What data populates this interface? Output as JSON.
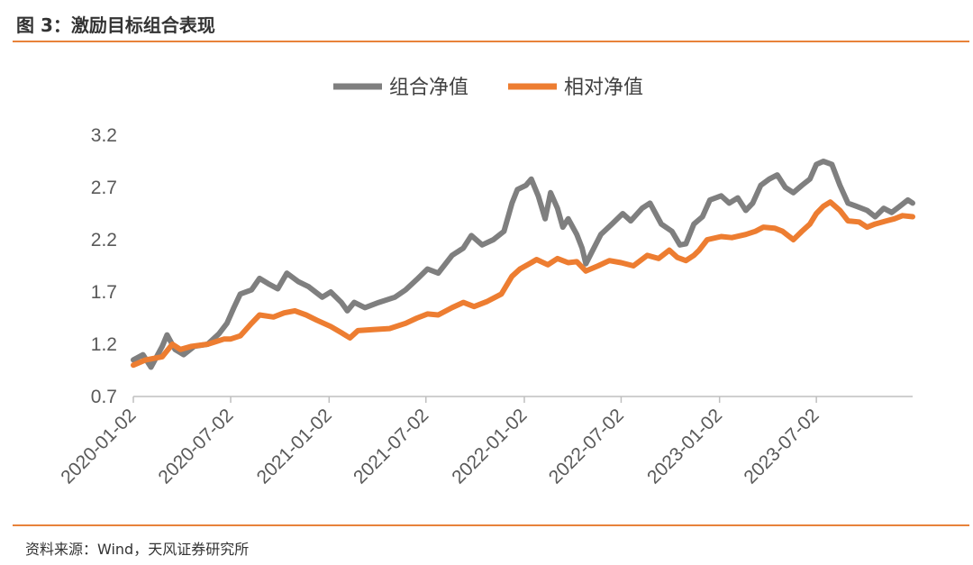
{
  "header": {
    "title": "图 3：激励目标组合表现"
  },
  "footer": {
    "source": "资料来源：Wind，天风证券研究所"
  },
  "colors": {
    "accent": "#e8823a",
    "combo": "#7f7f7f",
    "relative": "#ed7d31"
  },
  "chart_data": {
    "type": "line",
    "title": "",
    "xlabel": "",
    "ylabel": "",
    "ylim": [
      0.7,
      3.2
    ],
    "yticks": [
      0.7,
      1.2,
      1.7,
      2.2,
      2.7,
      3.2
    ],
    "xticks": [
      "2020-01-02",
      "2020-07-02",
      "2021-01-02",
      "2021-07-02",
      "2022-01-02",
      "2022-07-02",
      "2023-01-02",
      "2023-07-02"
    ],
    "legend_position": "top-center",
    "series": [
      {
        "name": "组合净值",
        "color": "#7f7f7f",
        "points": [
          [
            "2020-01-02",
            1.05
          ],
          [
            "2020-01-20",
            1.1
          ],
          [
            "2020-02-04",
            0.98
          ],
          [
            "2020-02-25",
            1.18
          ],
          [
            "2020-03-05",
            1.29
          ],
          [
            "2020-03-20",
            1.15
          ],
          [
            "2020-04-05",
            1.1
          ],
          [
            "2020-04-25",
            1.18
          ],
          [
            "2020-05-20",
            1.2
          ],
          [
            "2020-06-10",
            1.3
          ],
          [
            "2020-06-25",
            1.4
          ],
          [
            "2020-07-08",
            1.55
          ],
          [
            "2020-07-20",
            1.68
          ],
          [
            "2020-08-10",
            1.72
          ],
          [
            "2020-08-25",
            1.83
          ],
          [
            "2020-09-10",
            1.78
          ],
          [
            "2020-09-28",
            1.73
          ],
          [
            "2020-10-15",
            1.88
          ],
          [
            "2020-11-05",
            1.8
          ],
          [
            "2020-11-25",
            1.75
          ],
          [
            "2020-12-20",
            1.65
          ],
          [
            "2021-01-05",
            1.7
          ],
          [
            "2021-01-25",
            1.6
          ],
          [
            "2021-02-05",
            1.52
          ],
          [
            "2021-02-18",
            1.6
          ],
          [
            "2021-03-10",
            1.55
          ],
          [
            "2021-04-05",
            1.6
          ],
          [
            "2021-05-05",
            1.65
          ],
          [
            "2021-05-25",
            1.72
          ],
          [
            "2021-06-15",
            1.82
          ],
          [
            "2021-07-05",
            1.92
          ],
          [
            "2021-07-25",
            1.88
          ],
          [
            "2021-08-20",
            2.05
          ],
          [
            "2021-09-10",
            2.12
          ],
          [
            "2021-09-25",
            2.24
          ],
          [
            "2021-10-15",
            2.15
          ],
          [
            "2021-11-05",
            2.2
          ],
          [
            "2021-11-25",
            2.28
          ],
          [
            "2021-12-10",
            2.55
          ],
          [
            "2021-12-20",
            2.68
          ],
          [
            "2022-01-05",
            2.72
          ],
          [
            "2022-01-15",
            2.78
          ],
          [
            "2022-01-28",
            2.62
          ],
          [
            "2022-02-10",
            2.4
          ],
          [
            "2022-02-20",
            2.65
          ],
          [
            "2022-03-05",
            2.5
          ],
          [
            "2022-03-15",
            2.32
          ],
          [
            "2022-03-25",
            2.4
          ],
          [
            "2022-04-10",
            2.25
          ],
          [
            "2022-04-20",
            2.12
          ],
          [
            "2022-04-27",
            1.97
          ],
          [
            "2022-05-10",
            2.1
          ],
          [
            "2022-05-25",
            2.25
          ],
          [
            "2022-06-15",
            2.35
          ],
          [
            "2022-07-05",
            2.45
          ],
          [
            "2022-07-20",
            2.38
          ],
          [
            "2022-08-10",
            2.5
          ],
          [
            "2022-08-25",
            2.55
          ],
          [
            "2022-09-15",
            2.35
          ],
          [
            "2022-10-05",
            2.28
          ],
          [
            "2022-10-20",
            2.15
          ],
          [
            "2022-10-31",
            2.16
          ],
          [
            "2022-11-15",
            2.35
          ],
          [
            "2022-12-01",
            2.42
          ],
          [
            "2022-12-15",
            2.58
          ],
          [
            "2023-01-05",
            2.62
          ],
          [
            "2023-01-20",
            2.55
          ],
          [
            "2023-02-05",
            2.6
          ],
          [
            "2023-02-20",
            2.48
          ],
          [
            "2023-03-05",
            2.55
          ],
          [
            "2023-03-20",
            2.72
          ],
          [
            "2023-04-05",
            2.78
          ],
          [
            "2023-04-20",
            2.82
          ],
          [
            "2023-05-05",
            2.7
          ],
          [
            "2023-05-20",
            2.65
          ],
          [
            "2023-06-05",
            2.72
          ],
          [
            "2023-06-20",
            2.78
          ],
          [
            "2023-07-02",
            2.92
          ],
          [
            "2023-07-15",
            2.95
          ],
          [
            "2023-07-31",
            2.92
          ],
          [
            "2023-08-15",
            2.72
          ],
          [
            "2023-08-30",
            2.55
          ],
          [
            "2023-09-15",
            2.52
          ],
          [
            "2023-10-05",
            2.48
          ],
          [
            "2023-10-20",
            2.42
          ],
          [
            "2023-11-05",
            2.5
          ],
          [
            "2023-11-20",
            2.46
          ],
          [
            "2023-12-05",
            2.52
          ],
          [
            "2023-12-20",
            2.58
          ],
          [
            "2023-12-29",
            2.55
          ]
        ]
      },
      {
        "name": "相对净值",
        "color": "#ed7d31",
        "points": [
          [
            "2020-01-02",
            1.0
          ],
          [
            "2020-01-25",
            1.05
          ],
          [
            "2020-02-25",
            1.08
          ],
          [
            "2020-03-15",
            1.2
          ],
          [
            "2020-03-30",
            1.15
          ],
          [
            "2020-04-20",
            1.18
          ],
          [
            "2020-05-20",
            1.2
          ],
          [
            "2020-06-20",
            1.25
          ],
          [
            "2020-07-02",
            1.25
          ],
          [
            "2020-07-20",
            1.28
          ],
          [
            "2020-08-10",
            1.4
          ],
          [
            "2020-08-25",
            1.48
          ],
          [
            "2020-09-20",
            1.46
          ],
          [
            "2020-10-10",
            1.5
          ],
          [
            "2020-10-30",
            1.52
          ],
          [
            "2020-11-20",
            1.48
          ],
          [
            "2020-12-10",
            1.43
          ],
          [
            "2021-01-05",
            1.37
          ],
          [
            "2021-01-25",
            1.31
          ],
          [
            "2021-02-10",
            1.26
          ],
          [
            "2021-02-25",
            1.33
          ],
          [
            "2021-03-25",
            1.34
          ],
          [
            "2021-04-25",
            1.35
          ],
          [
            "2021-05-25",
            1.4
          ],
          [
            "2021-06-15",
            1.45
          ],
          [
            "2021-07-05",
            1.49
          ],
          [
            "2021-07-25",
            1.48
          ],
          [
            "2021-08-20",
            1.55
          ],
          [
            "2021-09-10",
            1.6
          ],
          [
            "2021-09-30",
            1.56
          ],
          [
            "2021-10-25",
            1.61
          ],
          [
            "2021-11-20",
            1.68
          ],
          [
            "2021-12-10",
            1.85
          ],
          [
            "2021-12-25",
            1.92
          ],
          [
            "2022-01-15",
            1.98
          ],
          [
            "2022-01-25",
            2.01
          ],
          [
            "2022-02-15",
            1.96
          ],
          [
            "2022-03-05",
            2.02
          ],
          [
            "2022-03-25",
            1.98
          ],
          [
            "2022-04-10",
            1.99
          ],
          [
            "2022-04-27",
            1.9
          ],
          [
            "2022-05-20",
            1.95
          ],
          [
            "2022-06-10",
            2.0
          ],
          [
            "2022-07-02",
            1.98
          ],
          [
            "2022-07-25",
            1.95
          ],
          [
            "2022-08-20",
            2.05
          ],
          [
            "2022-09-10",
            2.02
          ],
          [
            "2022-09-30",
            2.1
          ],
          [
            "2022-10-15",
            2.03
          ],
          [
            "2022-10-31",
            2.0
          ],
          [
            "2022-11-15",
            2.05
          ],
          [
            "2022-11-25",
            2.1
          ],
          [
            "2022-12-10",
            2.2
          ],
          [
            "2023-01-05",
            2.23
          ],
          [
            "2023-01-25",
            2.22
          ],
          [
            "2023-02-20",
            2.25
          ],
          [
            "2023-03-10",
            2.28
          ],
          [
            "2023-03-25",
            2.32
          ],
          [
            "2023-04-15",
            2.31
          ],
          [
            "2023-04-30",
            2.28
          ],
          [
            "2023-05-20",
            2.2
          ],
          [
            "2023-06-05",
            2.28
          ],
          [
            "2023-06-20",
            2.35
          ],
          [
            "2023-07-02",
            2.45
          ],
          [
            "2023-07-15",
            2.52
          ],
          [
            "2023-07-28",
            2.56
          ],
          [
            "2023-08-15",
            2.48
          ],
          [
            "2023-08-30",
            2.38
          ],
          [
            "2023-09-20",
            2.37
          ],
          [
            "2023-10-05",
            2.32
          ],
          [
            "2023-10-20",
            2.35
          ],
          [
            "2023-11-10",
            2.38
          ],
          [
            "2023-11-25",
            2.4
          ],
          [
            "2023-12-10",
            2.43
          ],
          [
            "2023-12-29",
            2.42
          ]
        ]
      }
    ]
  }
}
